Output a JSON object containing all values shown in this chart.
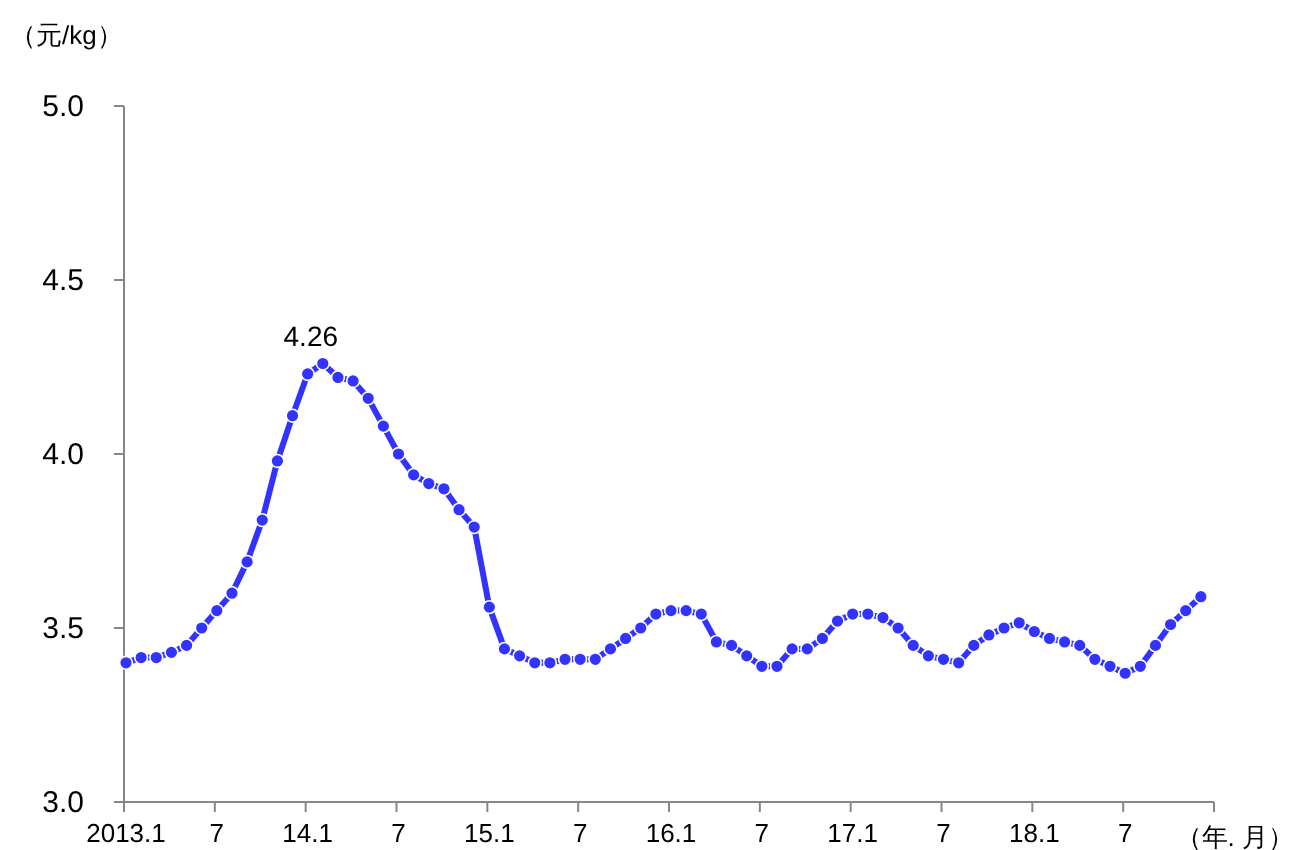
{
  "chart_data": {
    "type": "line",
    "ylabel": "（元/kg）",
    "xlabel": "（年. 月）",
    "categories": [
      "2013.1",
      null,
      null,
      null,
      null,
      null,
      "7",
      null,
      null,
      null,
      null,
      null,
      "14.1",
      null,
      null,
      null,
      null,
      null,
      "7",
      null,
      null,
      null,
      null,
      null,
      "15.1",
      null,
      null,
      null,
      null,
      null,
      "7",
      null,
      null,
      null,
      null,
      null,
      "16.1",
      null,
      null,
      null,
      null,
      null,
      "7",
      null,
      null,
      null,
      null,
      null,
      "17.1",
      null,
      null,
      null,
      null,
      null,
      "7",
      null,
      null,
      null,
      null,
      null,
      "18.1",
      null,
      null,
      null,
      null,
      null,
      "7",
      null,
      null,
      null,
      null,
      null
    ],
    "series": [
      {
        "color": "#3333ff",
        "values": [
          3.4,
          3.415,
          3.415,
          3.43,
          3.45,
          3.5,
          3.55,
          3.6,
          3.69,
          3.81,
          3.98,
          4.11,
          4.23,
          4.26,
          4.22,
          4.21,
          4.16,
          4.08,
          4.0,
          3.94,
          3.915,
          3.9,
          3.84,
          3.79,
          3.56,
          3.44,
          3.42,
          3.4,
          3.4,
          3.41,
          3.41,
          3.41,
          3.44,
          3.47,
          3.5,
          3.54,
          3.55,
          3.55,
          3.54,
          3.46,
          3.45,
          3.42,
          3.39,
          3.39,
          3.44,
          3.44,
          3.47,
          3.52,
          3.54,
          3.54,
          3.53,
          3.5,
          3.45,
          3.42,
          3.41,
          3.4,
          3.45,
          3.48,
          3.5,
          3.515,
          3.49,
          3.47,
          3.46,
          3.45,
          3.41,
          3.39,
          3.37,
          3.39,
          3.45,
          3.51,
          3.55,
          3.59
        ],
        "value_labels": [
          null,
          null,
          null,
          null,
          null,
          null,
          null,
          null,
          null,
          null,
          null,
          null,
          null,
          "4.26",
          null,
          null,
          null,
          null,
          null,
          null,
          null,
          null,
          null,
          null,
          null,
          null,
          null,
          null,
          null,
          null,
          null,
          null,
          null,
          null,
          null,
          null,
          null,
          null,
          null,
          null,
          null,
          null,
          null,
          null,
          null,
          null,
          null,
          null,
          null,
          null,
          null,
          null,
          null,
          null,
          null,
          null,
          null,
          null,
          null,
          null,
          null,
          null,
          null,
          null,
          null,
          null,
          null,
          null,
          null,
          null,
          null,
          null
        ]
      }
    ],
    "ylim": [
      3,
      5
    ],
    "yticks": [
      {
        "value": 3,
        "label": "3.0"
      },
      {
        "value": 3.5,
        "label": "3.5"
      },
      {
        "value": 4,
        "label": "4.0"
      },
      {
        "value": 4.5,
        "label": "4.5"
      },
      {
        "value": 5,
        "label": "5.0"
      }
    ],
    "grid": false,
    "marker": "circle",
    "line_style": "solid"
  }
}
